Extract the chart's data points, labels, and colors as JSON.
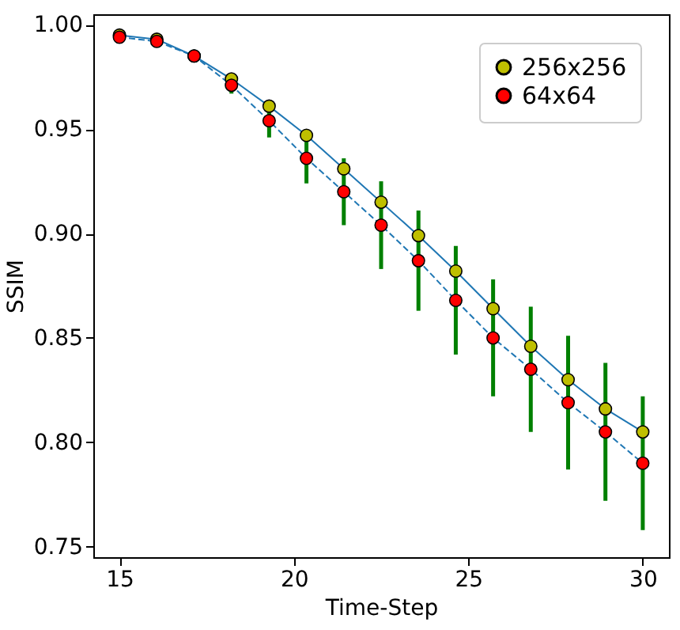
{
  "chart_data": {
    "type": "line",
    "xlabel": "Time-Step",
    "ylabel": "SSIM",
    "x": [
      15,
      16.07,
      17.14,
      18.21,
      19.29,
      20.36,
      21.43,
      22.5,
      23.57,
      24.64,
      25.71,
      26.79,
      27.86,
      28.93,
      30
    ],
    "series": [
      {
        "name": "256x256",
        "color": "#bfbf00",
        "line_style": "solid",
        "values": [
          0.995,
          0.993,
          0.985,
          0.974,
          0.961,
          0.947,
          0.931,
          0.915,
          0.899,
          0.882,
          0.864,
          0.846,
          0.83,
          0.816,
          0.805
        ]
      },
      {
        "name": "64x64",
        "color": "#ff0000",
        "line_style": "dashed",
        "values": [
          0.994,
          0.992,
          0.985,
          0.971,
          0.954,
          0.936,
          0.92,
          0.904,
          0.887,
          0.868,
          0.85,
          0.835,
          0.819,
          0.805,
          0.79
        ],
        "errors": [
          null,
          null,
          null,
          0.004,
          0.008,
          0.012,
          0.016,
          0.021,
          0.024,
          0.026,
          0.028,
          0.03,
          0.032,
          0.033,
          0.032
        ]
      }
    ],
    "xlim": [
      14.25,
      30.75
    ],
    "ylim": [
      0.745,
      1.005
    ],
    "xticks": [
      15,
      20,
      25,
      30
    ],
    "yticks": [
      0.75,
      {
        "value": 0.8,
        "label": "0.80"
      },
      0.85,
      {
        "value": 0.9,
        "label": "0.90"
      },
      0.95,
      {
        "value": 1.0,
        "label": "1.00"
      }
    ],
    "marker": "circle",
    "legend": "top right",
    "grid": false
  }
}
